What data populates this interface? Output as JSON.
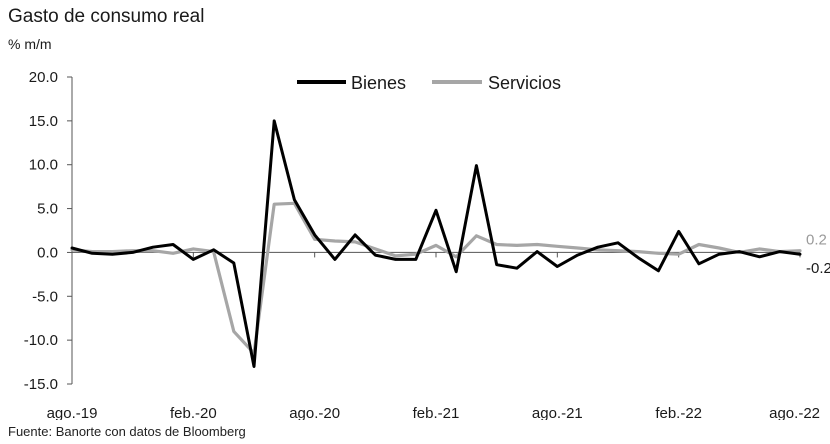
{
  "chart_data": {
    "type": "line",
    "title": "Gasto de consumo real",
    "ylabel": "% m/m",
    "source": "Fuente: Banorte con datos de Bloomberg",
    "ylim": [
      -15,
      20
    ],
    "yticks": [
      "20.0",
      "15.0",
      "10.0",
      "5.0",
      "0.0",
      "-5.0",
      "-10.0",
      "-15.0"
    ],
    "ytick_values": [
      20,
      15,
      10,
      5,
      0,
      -5,
      -10,
      -15
    ],
    "xtick_labels": [
      "ago.-19",
      "feb.-20",
      "ago.-20",
      "feb.-21",
      "ago.-21",
      "feb.-22",
      "ago.-22"
    ],
    "xtick_index": [
      0,
      6,
      12,
      18,
      24,
      30,
      36
    ],
    "x": [
      "ago.-19",
      "sep.-19",
      "oct.-19",
      "nov.-19",
      "dic.-19",
      "ene.-20",
      "feb.-20",
      "mar.-20",
      "abr.-20",
      "may.-20",
      "jun.-20",
      "jul.-20",
      "ago.-20",
      "sep.-20",
      "oct.-20",
      "nov.-20",
      "dic.-20",
      "ene.-21",
      "feb.-21",
      "mar.-21",
      "abr.-21",
      "may.-21",
      "jun.-21",
      "jul.-21",
      "ago.-21",
      "sep.-21",
      "oct.-21",
      "nov.-21",
      "dic.-21",
      "ene.-22",
      "feb.-22",
      "mar.-22",
      "abr.-22",
      "may.-22",
      "jun.-22",
      "jul.-22",
      "ago.-22"
    ],
    "legend_position": "top",
    "series": [
      {
        "name": "Bienes",
        "color": "#000000",
        "values": [
          0.5,
          -0.1,
          -0.2,
          0.0,
          0.6,
          0.9,
          -0.8,
          0.3,
          -1.2,
          -13.0,
          15.0,
          6.0,
          2.0,
          -0.8,
          2.0,
          -0.3,
          -0.8,
          -0.8,
          4.8,
          -2.2,
          9.9,
          -1.4,
          -1.8,
          0.1,
          -1.6,
          -0.3,
          0.6,
          1.1,
          -0.6,
          -2.1,
          2.4,
          -1.3,
          -0.2,
          0.1,
          -0.5,
          0.1,
          -0.2
        ],
        "end_label": "-0.2"
      },
      {
        "name": "Servicios",
        "color": "#a6a6a6",
        "values": [
          0.3,
          0.1,
          0.1,
          0.2,
          0.2,
          -0.1,
          0.4,
          0.1,
          -9.0,
          -11.5,
          5.5,
          5.6,
          1.5,
          1.3,
          1.2,
          0.4,
          -0.4,
          -0.2,
          0.8,
          -0.5,
          1.9,
          0.9,
          0.8,
          0.9,
          0.7,
          0.5,
          0.3,
          0.2,
          0.1,
          -0.1,
          -0.2,
          0.9,
          0.5,
          0.0,
          0.4,
          0.1,
          0.2
        ],
        "end_label": "0.2"
      }
    ]
  }
}
